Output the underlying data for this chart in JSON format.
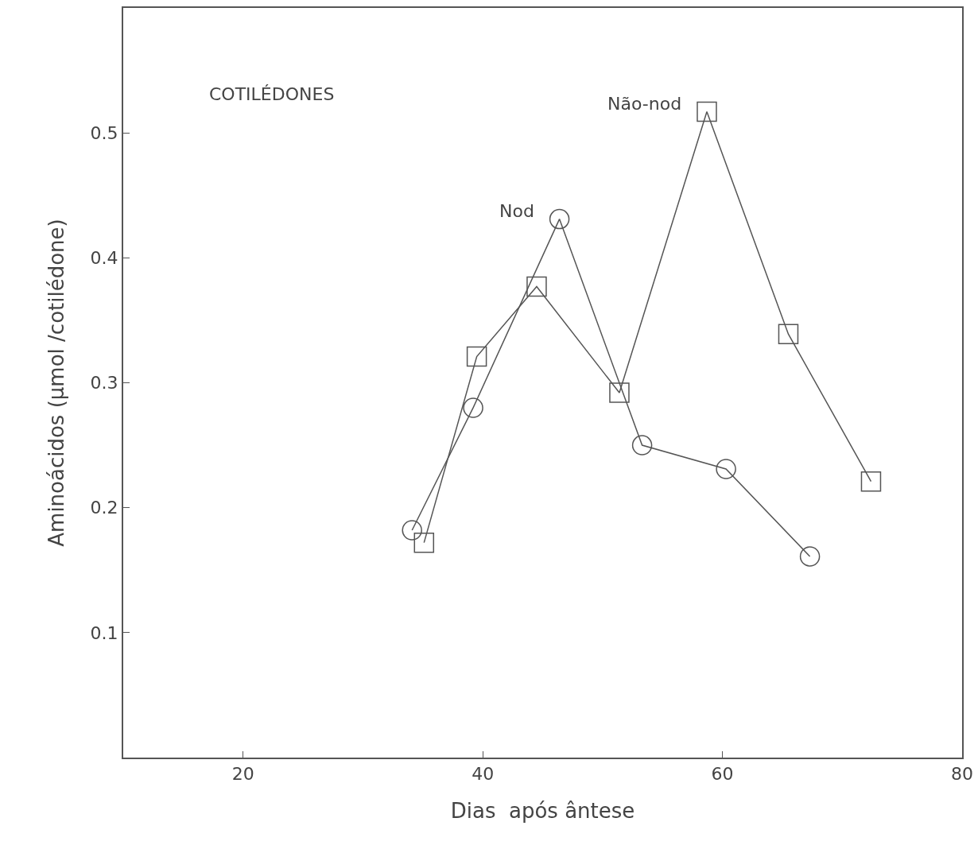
{
  "chart_data": {
    "type": "line",
    "xlabel": "Dias  após ântese",
    "ylabel": "Aminoácidos (µmol /cotilédone)",
    "annotations": [
      "COTILÉDONES"
    ],
    "xlim": [
      10,
      80
    ],
    "xticks": [
      20,
      40,
      60,
      80
    ],
    "ylim": [
      0,
      0.6
    ],
    "yticks": [
      0.1,
      0.2,
      0.3,
      0.4,
      0.5
    ],
    "grid": false,
    "legend": false,
    "series": [
      {
        "name": "Nod",
        "color": "#555555",
        "marker": "circle",
        "x": [
          34.1,
          39.2,
          46.4,
          53.3,
          60.3,
          67.3
        ],
        "values": [
          0.182,
          0.28,
          0.431,
          0.25,
          0.231,
          0.161
        ]
      },
      {
        "name": "Não-nod",
        "color": "#555555",
        "marker": "square",
        "x": [
          35.1,
          39.5,
          44.5,
          51.4,
          58.7,
          65.5,
          72.4
        ],
        "values": [
          0.172,
          0.321,
          0.377,
          0.292,
          0.517,
          0.339,
          0.221
        ]
      }
    ]
  }
}
